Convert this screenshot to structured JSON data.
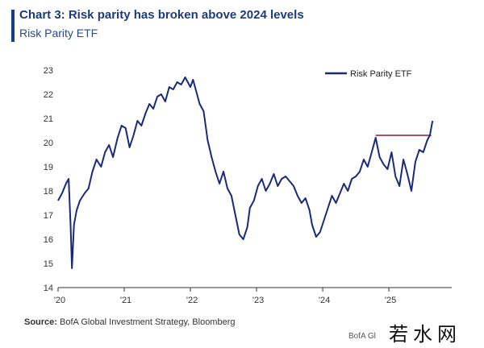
{
  "header": {
    "title": "Chart 3: Risk parity has broken above 2024 levels",
    "subtitle": "Risk Parity ETF"
  },
  "footer": {
    "source_label": "Source:",
    "source_text": " BofA Global Investment Strategy, Bloomberg",
    "partial_text": "BofA Gl",
    "watermark": "若水网"
  },
  "colors": {
    "series": "#1a2a7a",
    "reference": "#8b1a2a",
    "axis": "#333333"
  },
  "chart_data": {
    "type": "line",
    "title": "",
    "xlabel": "",
    "ylabel": "",
    "ylim": [
      14,
      23
    ],
    "yticks": [
      14,
      15,
      16,
      17,
      18,
      19,
      20,
      21,
      22,
      23
    ],
    "xlim": [
      2020.0,
      2025.95
    ],
    "xticks": [
      {
        "x": 2020.0,
        "label": "'20"
      },
      {
        "x": 2021.0,
        "label": "'21"
      },
      {
        "x": 2022.0,
        "label": "'22"
      },
      {
        "x": 2023.0,
        "label": "'23"
      },
      {
        "x": 2024.0,
        "label": "'24"
      },
      {
        "x": 2025.0,
        "label": "'25"
      }
    ],
    "grid": false,
    "legend_position": "top-right",
    "series": [
      {
        "name": "Risk Parity ETF",
        "x": [
          2020.0,
          2020.06,
          2020.12,
          2020.16,
          2020.19,
          2020.21,
          2020.24,
          2020.28,
          2020.33,
          2020.4,
          2020.46,
          2020.52,
          2020.58,
          2020.65,
          2020.71,
          2020.77,
          2020.83,
          2020.9,
          2020.96,
          2021.02,
          2021.08,
          2021.14,
          2021.2,
          2021.26,
          2021.32,
          2021.38,
          2021.44,
          2021.5,
          2021.56,
          2021.62,
          2021.68,
          2021.74,
          2021.8,
          2021.86,
          2021.92,
          2021.96,
          2022.0,
          2022.04,
          2022.08,
          2022.14,
          2022.2,
          2022.26,
          2022.32,
          2022.38,
          2022.44,
          2022.5,
          2022.56,
          2022.62,
          2022.68,
          2022.74,
          2022.8,
          2022.86,
          2022.9,
          2022.96,
          2023.02,
          2023.08,
          2023.14,
          2023.2,
          2023.26,
          2023.32,
          2023.38,
          2023.44,
          2023.5,
          2023.56,
          2023.62,
          2023.68,
          2023.74,
          2023.8,
          2023.84,
          2023.9,
          2023.96,
          2024.02,
          2024.08,
          2024.14,
          2024.2,
          2024.26,
          2024.32,
          2024.38,
          2024.44,
          2024.5,
          2024.56,
          2024.62,
          2024.68,
          2024.74,
          2024.8,
          2024.86,
          2024.92,
          2024.98,
          2025.04,
          2025.1,
          2025.16,
          2025.22,
          2025.28,
          2025.34,
          2025.4,
          2025.46,
          2025.52,
          2025.58,
          2025.62,
          2025.66
        ],
        "values": [
          17.6,
          17.9,
          18.3,
          18.5,
          16.5,
          14.8,
          16.6,
          17.2,
          17.6,
          17.9,
          18.1,
          18.8,
          19.3,
          19.0,
          19.6,
          19.9,
          19.4,
          20.2,
          20.7,
          20.6,
          19.8,
          20.3,
          20.9,
          20.7,
          21.2,
          21.6,
          21.4,
          21.9,
          22.0,
          21.7,
          22.3,
          22.2,
          22.5,
          22.4,
          22.7,
          22.5,
          22.3,
          22.6,
          22.2,
          21.6,
          21.3,
          20.1,
          19.4,
          18.8,
          18.3,
          18.8,
          18.1,
          17.8,
          17.0,
          16.2,
          16.0,
          16.5,
          17.3,
          17.6,
          18.2,
          18.5,
          18.0,
          18.3,
          18.7,
          18.2,
          18.5,
          18.6,
          18.4,
          18.2,
          17.8,
          17.5,
          17.7,
          17.2,
          16.6,
          16.1,
          16.3,
          16.8,
          17.3,
          17.8,
          17.5,
          17.9,
          18.3,
          18.0,
          18.5,
          18.6,
          18.8,
          19.3,
          19.0,
          19.6,
          20.2,
          19.4,
          19.1,
          18.9,
          19.6,
          18.6,
          18.2,
          19.3,
          18.7,
          18.0,
          19.2,
          19.7,
          19.6,
          20.1,
          20.3,
          20.9
        ]
      }
    ],
    "reference_line": {
      "x_start": 2024.8,
      "x_end": 2025.64,
      "value": 20.3
    }
  }
}
